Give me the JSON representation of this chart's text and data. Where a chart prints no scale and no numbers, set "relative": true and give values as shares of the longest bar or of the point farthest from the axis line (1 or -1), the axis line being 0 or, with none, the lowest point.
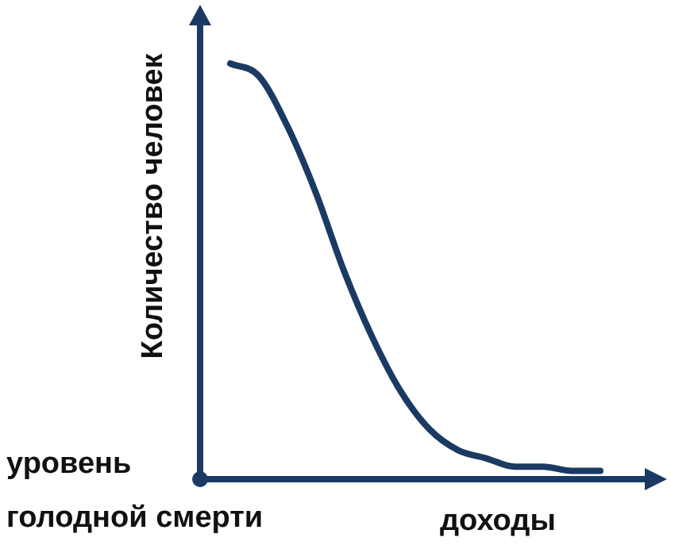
{
  "chart_data": {
    "type": "line",
    "relative": true,
    "ylabel": "Количество человек",
    "xlabel": "доходы",
    "annotations": [
      "уровень голодной смерти"
    ],
    "categories": [
      null,
      null,
      null,
      null,
      null,
      null,
      null,
      null,
      null,
      null,
      null,
      null,
      null,
      null
    ],
    "series": [
      {
        "color": "#1b3a63",
        "values": [
          1,
          0.97,
          0.85,
          0.69,
          0.5,
          0.34,
          0.21,
          0.12,
          0.07,
          0.05,
          0.03,
          0.03,
          0.02,
          0.02
        ]
      }
    ],
    "marker": "none",
    "line_style": "solid",
    "legend": false
  }
}
